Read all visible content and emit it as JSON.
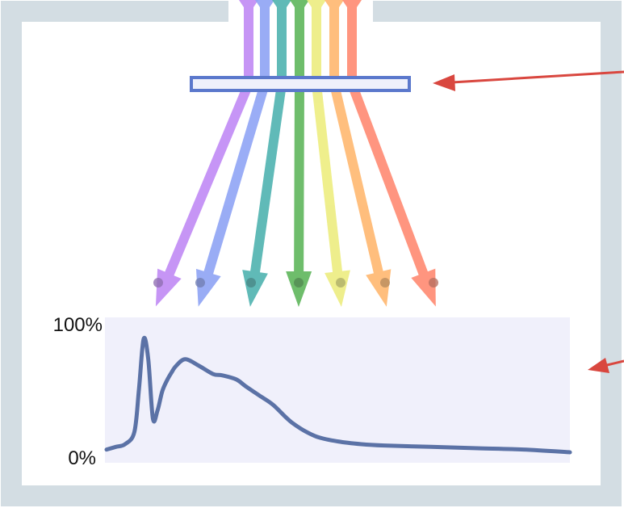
{
  "colors": {
    "frame": "#d3dde3",
    "grating": "#5b78cc",
    "grating_fill": "#eef0fb",
    "pointer_arrow": "#d9473f",
    "plot_area": "#f0f0fb",
    "spectrum_line": "#5b72a6",
    "beams": [
      "#c08af5",
      "#8fa4f5",
      "#4fb3b0",
      "#5fb65c",
      "#eded80",
      "#ffb870",
      "#ff8a72"
    ]
  },
  "chart_data": {
    "type": "line",
    "title": "",
    "xlabel": "",
    "ylabel": "",
    "ylim": [
      0,
      100
    ],
    "ytick_labels": [
      "0%",
      "100%"
    ],
    "x": [
      0,
      2,
      4,
      6,
      7,
      8,
      9,
      10,
      11,
      12,
      13,
      14,
      15,
      17,
      20,
      23,
      25,
      28,
      30,
      33,
      36,
      40,
      45,
      50,
      55,
      60,
      70,
      80,
      90,
      100
    ],
    "series": [
      {
        "values": [
          5,
          7,
          9,
          18,
          50,
          87,
          72,
          28,
          34,
          48,
          56,
          62,
          67,
          72,
          67,
          61,
          60,
          57,
          52,
          45,
          38,
          25,
          15,
          11,
          9,
          8,
          7,
          6,
          5,
          3
        ]
      }
    ]
  }
}
